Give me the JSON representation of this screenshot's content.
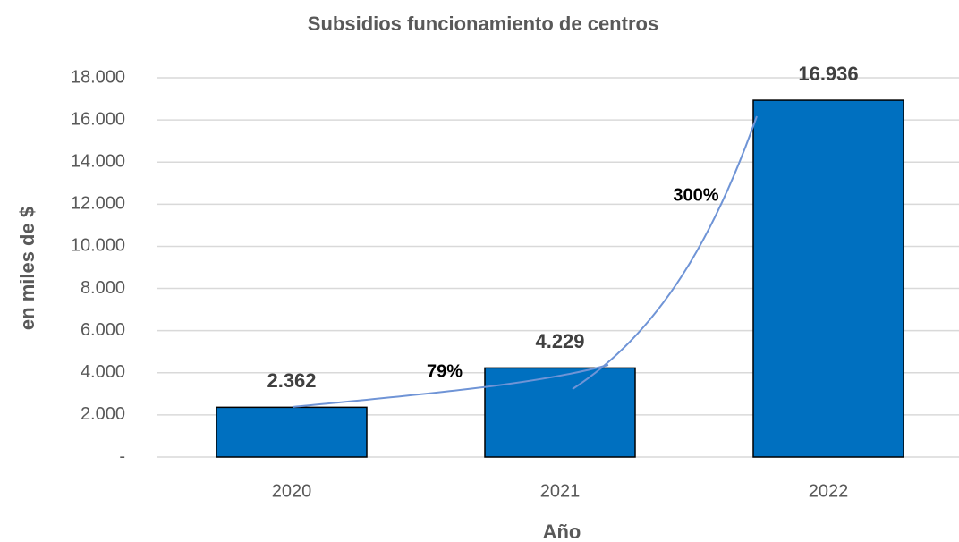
{
  "chart_data": {
    "type": "bar",
    "title": "Subsidios funcionamiento de centros",
    "x_label": "Año",
    "y_label": "en miles de $",
    "categories": [
      "2020",
      "2021",
      "2022"
    ],
    "values": [
      2362,
      4229,
      16936
    ],
    "value_labels": [
      "2.362",
      "4.229",
      "16.936"
    ],
    "color": "#0070c0",
    "ylim": [
      0,
      18000
    ],
    "yticks": [
      {
        "value": 0,
        "label": "-"
      },
      {
        "value": 2000,
        "label": "2.000"
      },
      {
        "value": 4000,
        "label": "4.000"
      },
      {
        "value": 6000,
        "label": "6.000"
      },
      {
        "value": 8000,
        "label": "8.000"
      },
      {
        "value": 10000,
        "label": "10.000"
      },
      {
        "value": 12000,
        "label": "12.000"
      },
      {
        "value": 14000,
        "label": "14.000"
      },
      {
        "value": 16000,
        "label": "16.000"
      },
      {
        "value": 18000,
        "label": "18.000"
      }
    ],
    "grid": true,
    "annotations": [
      "79%",
      "300%"
    ]
  }
}
